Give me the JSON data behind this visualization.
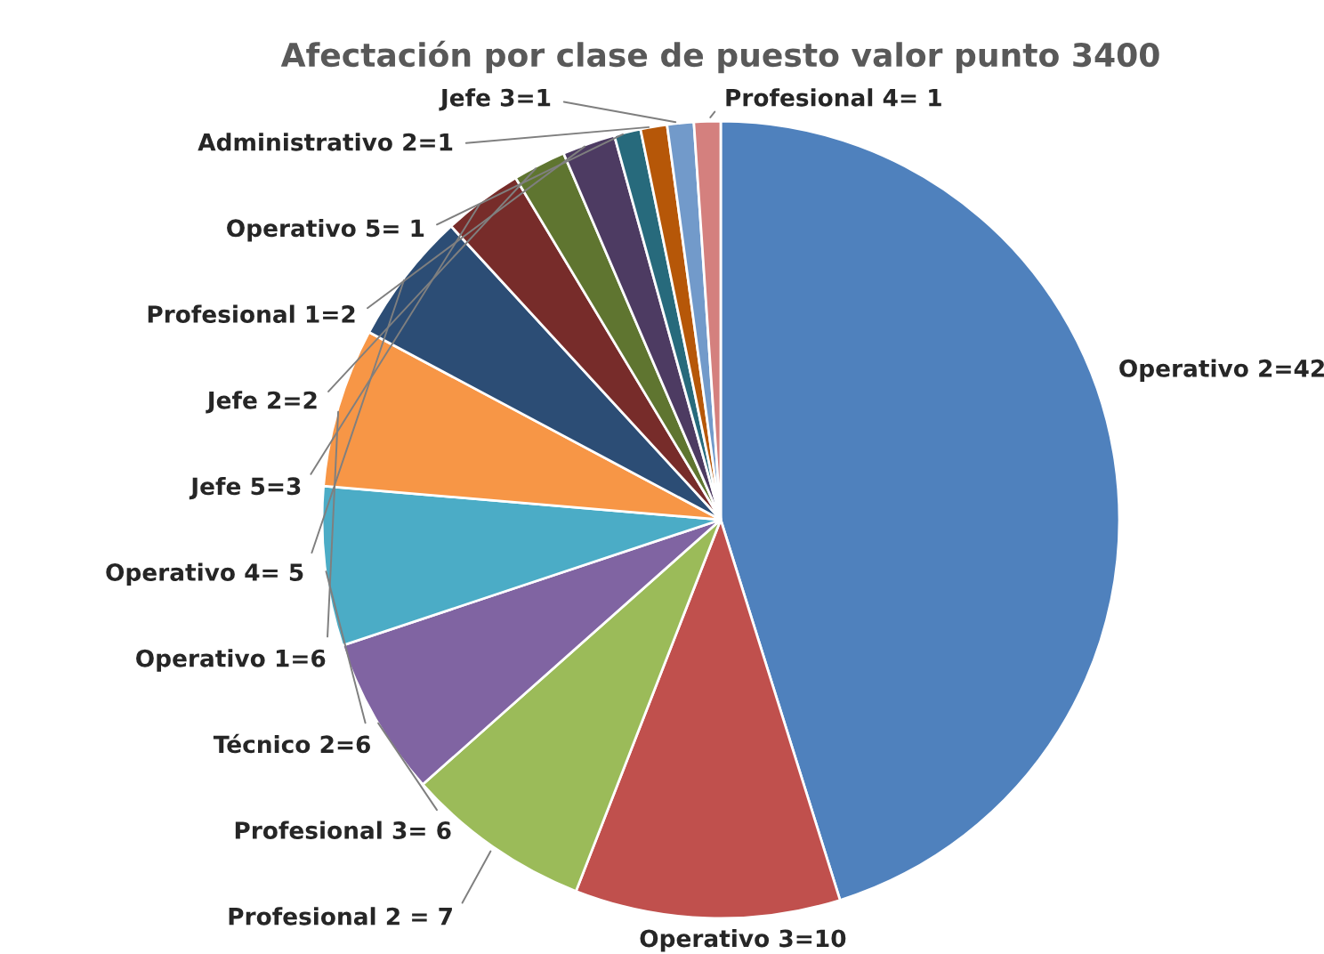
{
  "chart_data": {
    "type": "pie",
    "title": "Afectación por clase de puesto valor punto 3400",
    "categories": [
      "Operativo 2=42",
      "Operativo 3=10",
      "Profesional 2 = 7",
      "Profesional 3= 6",
      "Técnico 2=6",
      "Operativo 1=6",
      "Operativo 4= 5",
      "Jefe 5=3",
      "Jefe 2=2",
      "Profesional 1=2",
      "Operativo 5= 1",
      "Administrativo 2=1",
      "Jefe 3=1",
      "Profesional 4= 1"
    ],
    "values": [
      42,
      10,
      7,
      6,
      6,
      6,
      5,
      3,
      2,
      2,
      1,
      1,
      1,
      1
    ],
    "colors": [
      "#4f81bd",
      "#c0504d",
      "#9bbb59",
      "#8064a2",
      "#4bacc6",
      "#f79646",
      "#2c4d75",
      "#772c2a",
      "#5f7530",
      "#4d3b62",
      "#276a7c",
      "#b65708",
      "#729aca",
      "#d4807e"
    ]
  }
}
